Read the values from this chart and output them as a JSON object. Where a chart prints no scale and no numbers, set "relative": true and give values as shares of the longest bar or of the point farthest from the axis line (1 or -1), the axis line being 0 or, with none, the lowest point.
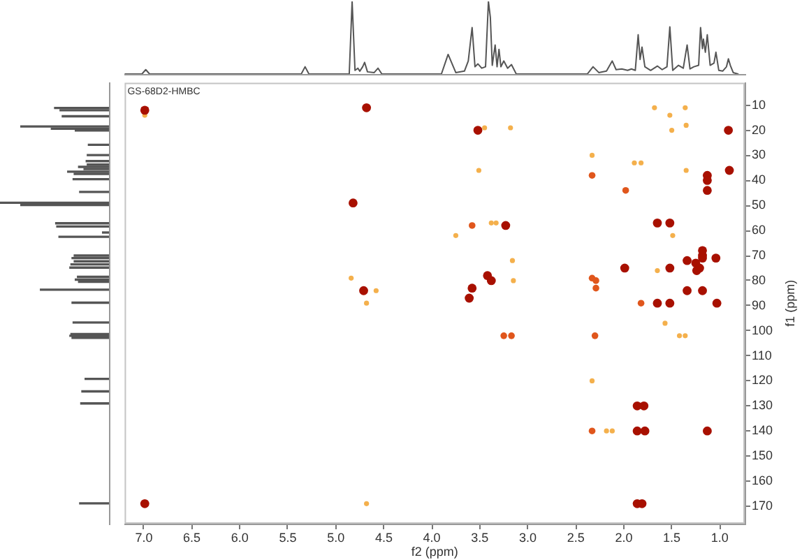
{
  "chart_data": [
    {
      "type": "line",
      "relative": true,
      "color": "#555555",
      "tick_labels": false,
      "xlim": [
        7.2,
        0.74
      ],
      "x": [
        7.2,
        7.02,
        6.98,
        6.94,
        5.36,
        5.32,
        5.28,
        4.86,
        4.83,
        4.8,
        4.77,
        4.75,
        4.72,
        4.7,
        4.67,
        4.6,
        4.56,
        4.52,
        3.9,
        3.83,
        3.75,
        3.66,
        3.62,
        3.58,
        3.55,
        3.52,
        3.48,
        3.44,
        3.41,
        3.39,
        3.37,
        3.34,
        3.32,
        3.3,
        3.28,
        3.25,
        3.21,
        3.17,
        3.12,
        2.38,
        2.32,
        2.26,
        2.18,
        2.12,
        2.08,
        2.02,
        1.96,
        1.92,
        1.88,
        1.85,
        1.83,
        1.81,
        1.78,
        1.72,
        1.65,
        1.6,
        1.55,
        1.52,
        1.49,
        1.43,
        1.38,
        1.34,
        1.31,
        1.27,
        1.22,
        1.2,
        1.18,
        1.17,
        1.15,
        1.13,
        1.1,
        1.06,
        1.04,
        1.01,
        0.97,
        0.93,
        0.91,
        0.89,
        0.86,
        0.81
      ],
      "values": [
        0,
        0,
        0.06,
        0,
        0,
        0.1,
        0,
        0,
        1,
        0.05,
        0.08,
        0.04,
        0.1,
        0.16,
        0.03,
        0.02,
        0.08,
        0,
        0,
        0.27,
        0.02,
        0.04,
        0.18,
        0.64,
        0.1,
        0.14,
        0.08,
        0.1,
        1,
        0.78,
        0.12,
        0.4,
        0.1,
        0.34,
        0.1,
        0.18,
        0.08,
        0.13,
        0,
        0,
        0.1,
        0.02,
        0.04,
        0.18,
        0.06,
        0.07,
        0.05,
        0.07,
        0.05,
        0.54,
        0.2,
        0.37,
        0.1,
        0.05,
        0.11,
        0.06,
        0.1,
        0.65,
        0.05,
        0.12,
        0.08,
        0.4,
        0.07,
        0.1,
        0.12,
        0.64,
        0.35,
        0.48,
        0.3,
        0.54,
        0.12,
        0.15,
        0.3,
        0.05,
        0.04,
        0.1,
        0.21,
        0.12,
        0.02,
        0
      ]
    },
    {
      "type": "bar",
      "orientation": "horizontal",
      "relative": true,
      "color": "#555555",
      "tick_labels": false,
      "ylim": [
        177,
        1
      ],
      "x": [
        11.1,
        12,
        14.4,
        18.5,
        19.4,
        20.1,
        25.8,
        29.9,
        32.3,
        33.7,
        34.6,
        35.5,
        36.5,
        37.4,
        39.5,
        44.6,
        48.9,
        49.8,
        57.1,
        58.4,
        60.8,
        62.5,
        70,
        71,
        72.3,
        73.5,
        74.8,
        78.5,
        79.6,
        80.5,
        83.6,
        88.8,
        96.7,
        101.3,
        102,
        102.8,
        119.2,
        124.2,
        129,
        168.9
      ],
      "values": [
        0.5,
        0.45,
        0.43,
        0.81,
        0.53,
        0.31,
        0.19,
        0.2,
        0.21,
        0.2,
        0.28,
        0.23,
        0.38,
        0.32,
        0.33,
        0.27,
        1,
        0.81,
        0.49,
        0.48,
        0.06,
        0.46,
        0.32,
        0.34,
        0.32,
        0.35,
        0.36,
        0.29,
        0.31,
        0.28,
        0.63,
        0.34,
        0.33,
        0.35,
        0.36,
        0.34,
        0.22,
        0.25,
        0.26,
        0.27
      ]
    },
    {
      "type": "scatter",
      "title": "GS-68D2-HMBC",
      "xlabel": "f2 (ppm)",
      "ylabel": "f1 (ppm)",
      "marker": "circle",
      "xlim": [
        7.2,
        0.74
      ],
      "xticks": [
        {
          "value": 7,
          "label": "7.0"
        },
        6.5,
        {
          "value": 6,
          "label": "6.0"
        },
        5.5,
        {
          "value": 5,
          "label": "5.0"
        },
        4.5,
        {
          "value": 4,
          "label": "4.0"
        },
        3.5,
        {
          "value": 3,
          "label": "3.0"
        },
        2.5,
        {
          "value": 2,
          "label": "2.0"
        },
        1.5,
        {
          "value": 1,
          "label": "1.0"
        }
      ],
      "ylim": [
        177,
        1
      ],
      "yticks": [
        10,
        20,
        30,
        40,
        50,
        60,
        70,
        80,
        90,
        100,
        110,
        120,
        130,
        140,
        150,
        160,
        170
      ],
      "series": [
        {
          "color": "#a81000",
          "x": [
            6.99,
            4.68,
            4.82,
            4.71,
            6.99,
            3.52,
            3.23,
            3.42,
            3.38,
            3.58,
            3.61,
            1.13,
            1.13,
            1.13,
            0.91,
            0.9,
            1.65,
            1.52,
            1.18,
            1.18,
            1.18,
            1.34,
            1.25,
            1.04,
            1.21,
            1.24,
            1.99,
            1.52,
            1.34,
            1.18,
            1.65,
            1.52,
            1.03,
            1.86,
            1.79,
            1.86,
            1.78,
            1.13,
            1.86,
            1.81
          ],
          "values": [
            12,
            11,
            49,
            84,
            169,
            20,
            58,
            78,
            80,
            83,
            87,
            38,
            40,
            44,
            20,
            36,
            57,
            57,
            68,
            70,
            71,
            72,
            73,
            71,
            75,
            76,
            75,
            75,
            84,
            84,
            89,
            89,
            89,
            130,
            130,
            140,
            140,
            140,
            169,
            169
          ]
        },
        {
          "color": "#e0561c",
          "x": [
            3.58,
            2.33,
            1.98,
            2.33,
            2.29,
            2.29,
            1.82,
            3.25,
            3.17,
            2.3,
            2.33
          ],
          "values": [
            58,
            38,
            44,
            79,
            80,
            83,
            89,
            102,
            102,
            102,
            140
          ]
        },
        {
          "color": "#f4b04c",
          "x": [
            6.99,
            4.84,
            4.58,
            4.68,
            4.68,
            3.75,
            3.45,
            3.18,
            3.51,
            3.38,
            3.33,
            3.16,
            3.15,
            2.33,
            1.89,
            1.82,
            1.68,
            1.36,
            1.52,
            1.5,
            1.35,
            1.35,
            1.49,
            1.65,
            1.42,
            1.36,
            2.33,
            2.18,
            2.12,
            1.57
          ],
          "values": [
            14,
            79,
            84,
            89,
            169,
            62,
            19,
            19,
            36,
            57,
            57,
            72,
            80,
            30,
            33,
            33,
            11,
            11,
            14,
            20,
            18,
            36,
            62,
            76,
            102,
            102,
            120,
            140,
            140,
            97
          ]
        }
      ]
    }
  ]
}
